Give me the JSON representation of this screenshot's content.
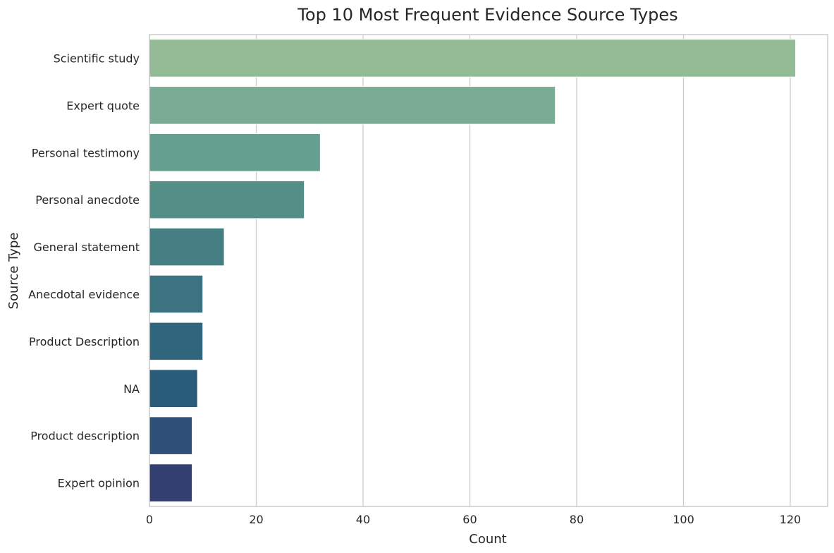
{
  "chart_data": {
    "type": "bar",
    "orientation": "horizontal",
    "title": "Top 10 Most Frequent Evidence Source Types",
    "xlabel": "Count",
    "ylabel": "Source Type",
    "xlim": [
      0,
      127
    ],
    "xticks": [
      0,
      20,
      40,
      60,
      80,
      100,
      120
    ],
    "grid": "vertical",
    "categories": [
      "Scientific study",
      "Expert quote",
      "Personal testimony",
      "Personal anecdote",
      "General statement",
      "Anecdotal evidence",
      "Product Description",
      "NA",
      "Product description",
      "Expert opinion"
    ],
    "values": [
      121,
      76,
      32,
      29,
      14,
      10,
      10,
      9,
      8,
      8
    ],
    "colors": [
      "#93bb96",
      "#7aab94",
      "#659f8f",
      "#538e87",
      "#457f84",
      "#3b7480",
      "#2f667d",
      "#295c7b",
      "#2d4f78",
      "#333f70"
    ]
  }
}
